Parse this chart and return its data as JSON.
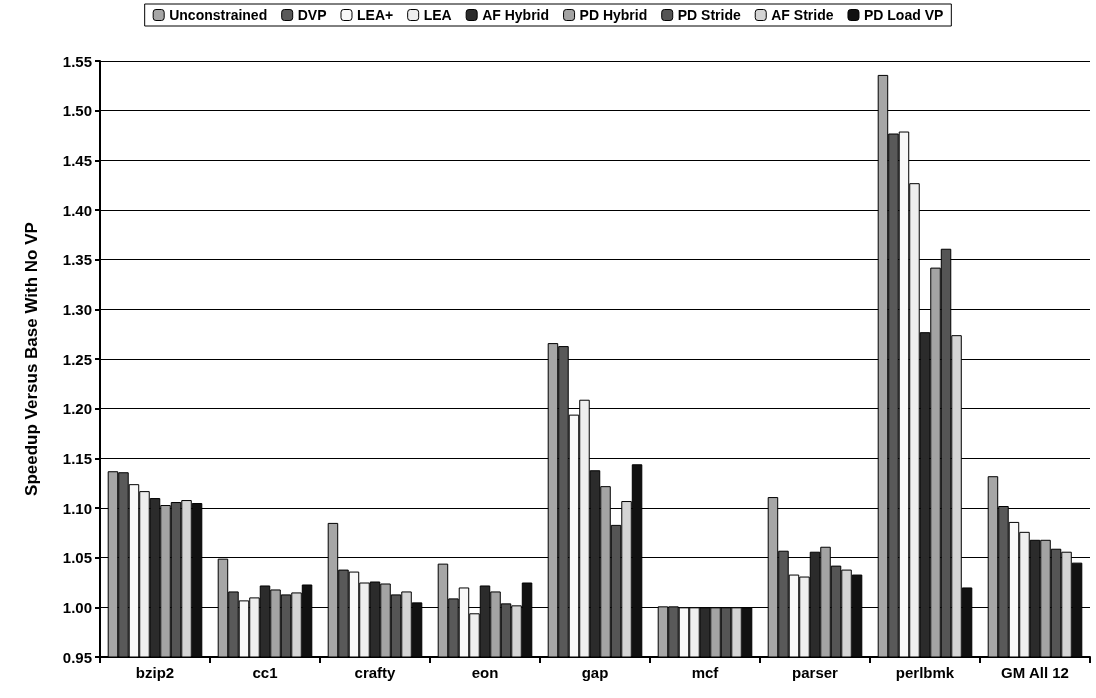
{
  "chart_data": {
    "type": "bar",
    "ylabel": "Speedup Versus Base With No VP",
    "categories": [
      "bzip2",
      "cc1",
      "crafty",
      "eon",
      "gap",
      "mcf",
      "parser",
      "perlbmk",
      "GM All 12"
    ],
    "series": [
      {
        "name": "Unconstrained",
        "color": "#a6a6a6",
        "values": [
          1.137,
          1.049,
          1.085,
          1.044,
          1.266,
          1.001,
          1.111,
          1.536,
          1.132
        ]
      },
      {
        "name": "DVP",
        "color": "#595959",
        "values": [
          1.136,
          1.016,
          1.038,
          1.009,
          1.263,
          1.001,
          1.057,
          1.477,
          1.102
        ]
      },
      {
        "name": "LEA+",
        "color": "#f8f8f8",
        "values": [
          1.124,
          1.007,
          1.036,
          1.02,
          1.194,
          1.0,
          1.033,
          1.479,
          1.086
        ]
      },
      {
        "name": "LEA",
        "color": "#eeeeee",
        "values": [
          1.117,
          1.01,
          1.025,
          0.994,
          1.209,
          1.0,
          1.031,
          1.427,
          1.076
        ]
      },
      {
        "name": "AF Hybrid",
        "color": "#2b2b2b",
        "values": [
          1.11,
          1.022,
          1.026,
          1.022,
          1.138,
          1.0,
          1.056,
          1.277,
          1.068
        ]
      },
      {
        "name": "PD Hybrid",
        "color": "#a3a3a3",
        "values": [
          1.103,
          1.018,
          1.024,
          1.016,
          1.122,
          1.0,
          1.061,
          1.342,
          1.068
        ]
      },
      {
        "name": "PD Stride",
        "color": "#555555",
        "values": [
          1.106,
          1.013,
          1.013,
          1.004,
          1.083,
          1.0,
          1.042,
          1.361,
          1.059
        ]
      },
      {
        "name": "AF Stride",
        "color": "#d4d4d4",
        "values": [
          1.108,
          1.015,
          1.016,
          1.002,
          1.107,
          1.0,
          1.038,
          1.274,
          1.056
        ]
      },
      {
        "name": "PD Load VP",
        "color": "#111111",
        "values": [
          1.105,
          1.023,
          1.005,
          1.025,
          1.144,
          1.0,
          1.033,
          1.02,
          1.045
        ]
      }
    ],
    "ylim": [
      0.95,
      1.55
    ],
    "yticks": [
      {
        "value": 0.95,
        "label": "0.95"
      },
      {
        "value": 1.0,
        "label": "1.00"
      },
      {
        "value": 1.05,
        "label": "1.05"
      },
      {
        "value": 1.1,
        "label": "1.10"
      },
      {
        "value": 1.15,
        "label": "1.15"
      },
      {
        "value": 1.2,
        "label": "1.20"
      },
      {
        "value": 1.25,
        "label": "1.25"
      },
      {
        "value": 1.3,
        "label": "1.30"
      },
      {
        "value": 1.35,
        "label": "1.35"
      },
      {
        "value": 1.4,
        "label": "1.40"
      },
      {
        "value": 1.45,
        "label": "1.45"
      },
      {
        "value": 1.5,
        "label": "1.50"
      },
      {
        "value": 1.55,
        "label": "1.55"
      }
    ],
    "grid": "y",
    "legend": "top"
  }
}
